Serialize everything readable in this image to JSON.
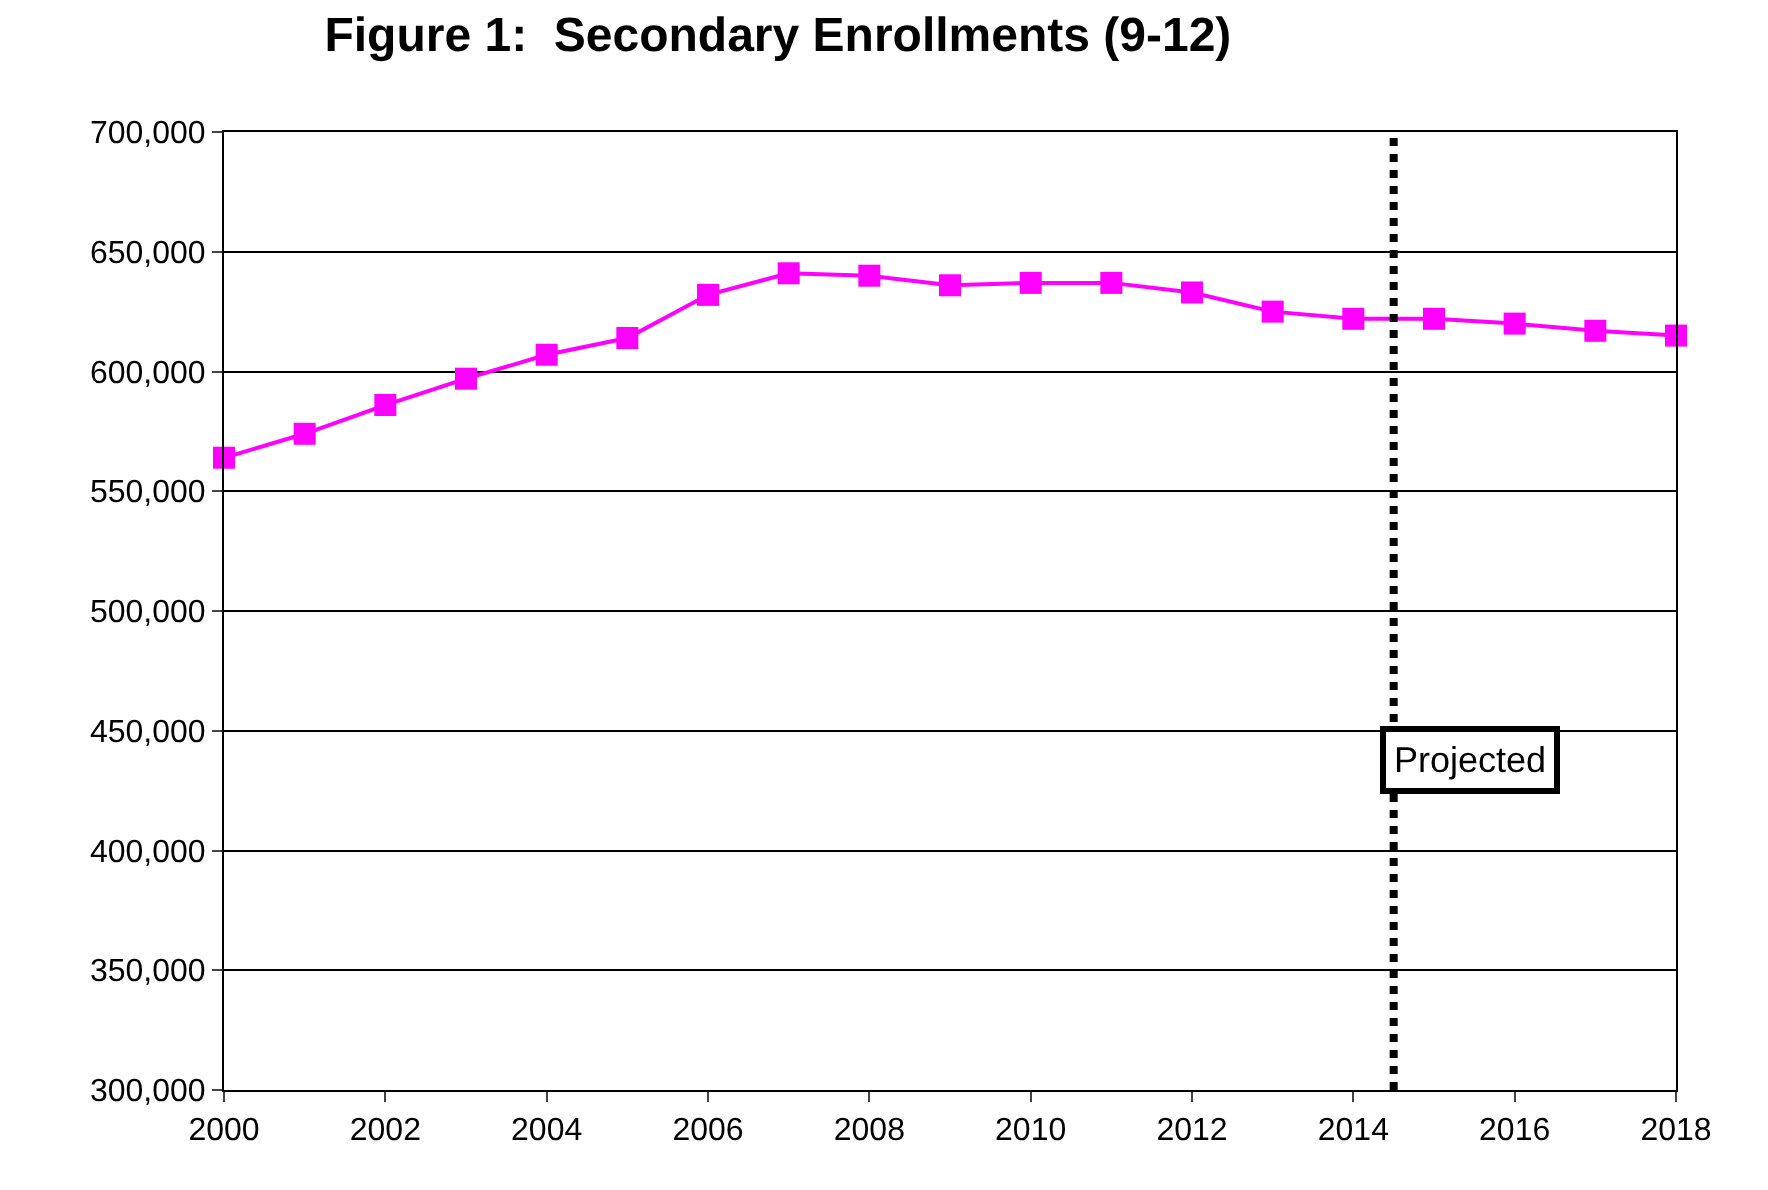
{
  "chart_data": {
    "type": "line",
    "title": "Figure 1:  Secondary Enrollments (9-12)",
    "x": [
      2000,
      2001,
      2002,
      2003,
      2004,
      2005,
      2006,
      2007,
      2008,
      2009,
      2010,
      2011,
      2012,
      2013,
      2014,
      2015,
      2016,
      2017,
      2018
    ],
    "series": [
      {
        "color": "#ff00ff",
        "values": [
          564000,
          574000,
          586000,
          597000,
          607000,
          614000,
          632000,
          641000,
          640000,
          636000,
          637000,
          637000,
          633000,
          625000,
          622000,
          622000,
          620000,
          617000,
          615000
        ]
      }
    ],
    "xlim": [
      2000,
      2018
    ],
    "xticks": [
      2000,
      2002,
      2004,
      2006,
      2008,
      2010,
      2012,
      2014,
      2016,
      2018
    ],
    "ylim": [
      300000,
      700000
    ],
    "yticks": [
      {
        "value": 300000,
        "label": "300,000"
      },
      {
        "value": 350000,
        "label": "350,000"
      },
      {
        "value": 400000,
        "label": "400,000"
      },
      {
        "value": 450000,
        "label": "450,000"
      },
      {
        "value": 500000,
        "label": "500,000"
      },
      {
        "value": 550000,
        "label": "550,000"
      },
      {
        "value": 600000,
        "label": "600,000"
      },
      {
        "value": 650000,
        "label": "650,000"
      },
      {
        "value": 700000,
        "label": "700,000"
      }
    ],
    "ref_lines": [
      {
        "axis": "x",
        "value": 2014.5,
        "color": "#000000",
        "line_style": "dotted"
      }
    ],
    "annotations": [
      "Projected"
    ],
    "grid": "y",
    "marker": "square",
    "line_style": "solid"
  }
}
